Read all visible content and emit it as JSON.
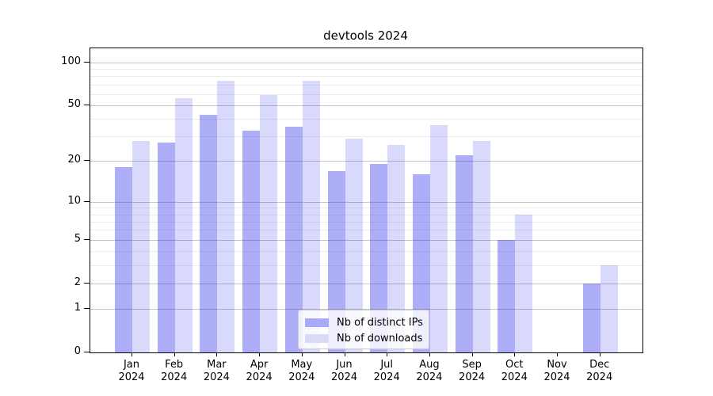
{
  "title": "devtools 2024",
  "chart_data": {
    "type": "bar",
    "title": "devtools 2024",
    "categories": [
      "Jan",
      "Feb",
      "Mar",
      "Apr",
      "May",
      "Jun",
      "Jul",
      "Aug",
      "Sep",
      "Oct",
      "Nov",
      "Dec"
    ],
    "category_year": "2024",
    "series": [
      {
        "name": "Nb of distinct IPs",
        "color": "rgba(30,30,235,0.36)",
        "color_hex_on_white": "#aaaaf8",
        "values": [
          18,
          27,
          43,
          33,
          35,
          17,
          19,
          16,
          22,
          5,
          0,
          2
        ]
      },
      {
        "name": "Nb of downloads",
        "color": "rgba(30,30,235,0.17)",
        "color_hex_on_white": "#d9d9f8",
        "values": [
          28,
          56,
          74,
          59,
          74,
          29,
          26,
          36,
          28,
          8,
          0,
          3
        ]
      }
    ],
    "yscale": "symlog-log1p",
    "y_major_ticks": [
      0,
      1,
      2,
      5,
      10,
      20,
      50,
      100
    ],
    "y_minor_ticks": [
      3,
      4,
      6,
      7,
      8,
      9,
      30,
      40,
      60,
      70,
      80,
      90
    ],
    "ylim": [
      0,
      125
    ],
    "xlabel": "",
    "ylabel": "",
    "grid": true,
    "legend_position": "lower center"
  },
  "colors": {
    "grid_major": "#c6c6c6",
    "grid_minor": "#ededed",
    "spine": "#000000",
    "legend_border": "#cccccc",
    "background": "#ffffff"
  }
}
